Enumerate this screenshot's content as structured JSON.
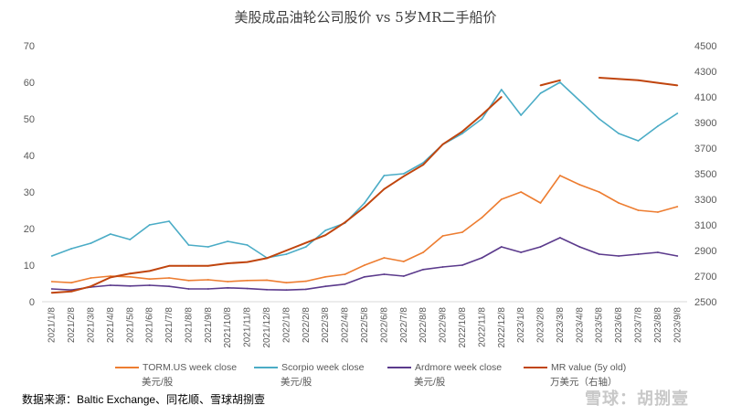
{
  "chart_data": {
    "type": "line",
    "title": "美股成品油轮公司股价  vs 5岁MR二手船价",
    "x": [
      "2021/1/8",
      "2021/2/8",
      "2021/3/8",
      "2021/4/8",
      "2021/5/8",
      "2021/6/8",
      "2021/7/8",
      "2021/8/8",
      "2021/9/8",
      "2021/10/8",
      "2021/11/8",
      "2021/12/8",
      "2022/1/8",
      "2022/2/8",
      "2022/3/8",
      "2022/4/8",
      "2022/5/8",
      "2022/6/8",
      "2022/7/8",
      "2022/8/8",
      "2022/9/8",
      "2022/10/8",
      "2022/11/8",
      "2022/12/8",
      "2023/1/8",
      "2023/2/8",
      "2023/3/8",
      "2023/4/8",
      "2023/5/8",
      "2023/6/8",
      "2023/7/8",
      "2023/8/8",
      "2023/9/8"
    ],
    "x_tick_labels": [
      "2021/1/8",
      "2021/2/8",
      "2021/3/8",
      "2021/4/8",
      "2021/5/8",
      "2021/6/8",
      "2021/7/8",
      "2021/8/8",
      "2021/9/8",
      "2021/10/8",
      "2021/11/8",
      "2021/12/8",
      "2022/1/8",
      "2022/2/8",
      "2022/3/8",
      "2022/4/8",
      "2022/5/8",
      "2022/6/8",
      "2022/7/8",
      "2022/8/8",
      "2022/9/8",
      "2022/10/8",
      "2022/11/8",
      "2022/12/8",
      "2023/1/8",
      "2023/2/8",
      "2023/3/8",
      "2023/4/8",
      "2023/5/8",
      "2023/6/8",
      "2023/7/8",
      "2023/8/8",
      "2023/9/8"
    ],
    "ylim_left": [
      0,
      70
    ],
    "y_left_ticks": [
      "0",
      "10",
      "20",
      "30",
      "40",
      "50",
      "60",
      "70"
    ],
    "ylim_right": [
      2500,
      4500
    ],
    "y_right_ticks": [
      "2500",
      "2700",
      "2900",
      "3100",
      "3300",
      "3500",
      "3700",
      "3900",
      "4100",
      "4300",
      "4500"
    ],
    "grid": false,
    "legend_position": "bottom",
    "series": [
      {
        "name": "TORM.US week close",
        "unit": "美元/股",
        "axis": "left",
        "color": "#ED7D31",
        "values": [
          5.5,
          5.2,
          6.5,
          7.0,
          6.8,
          6.2,
          6.5,
          5.8,
          6.0,
          5.5,
          5.8,
          5.9,
          5.2,
          5.6,
          6.8,
          7.5,
          10.0,
          12.0,
          11.0,
          13.5,
          18.0,
          19.0,
          23.0,
          28.0,
          30.0,
          27.0,
          34.5,
          32.0,
          30.0,
          27.0,
          25.0,
          24.5,
          26.0
        ]
      },
      {
        "name": "Scorpio week close",
        "unit": "美元/股",
        "axis": "left",
        "color": "#4BACC6",
        "values": [
          12.5,
          14.5,
          16.0,
          18.5,
          17.0,
          21.0,
          22.0,
          15.5,
          15.0,
          16.5,
          15.5,
          12.0,
          13.0,
          15.0,
          19.5,
          21.5,
          27.0,
          34.5,
          35.0,
          38.0,
          43.0,
          46.0,
          50.0,
          58.0,
          51.0,
          57.0,
          60.0,
          55.0,
          50.0,
          46.0,
          44.0,
          48.0,
          51.5
        ]
      },
      {
        "name": "Ardmore week close",
        "unit": "美元/股",
        "axis": "left",
        "color": "#5B3A8C",
        "values": [
          3.5,
          3.2,
          4.0,
          4.5,
          4.3,
          4.5,
          4.2,
          3.5,
          3.5,
          3.8,
          3.6,
          3.3,
          3.2,
          3.4,
          4.2,
          4.8,
          6.8,
          7.5,
          7.0,
          8.8,
          9.5,
          10.0,
          12.0,
          15.0,
          13.5,
          15.0,
          17.5,
          15.0,
          13.0,
          12.5,
          13.0,
          13.5,
          12.5
        ]
      },
      {
        "name": "MR value (5y old)",
        "unit": "万美元（右轴）",
        "axis": "right",
        "color": "#C0450E",
        "values": [
          2570,
          2580,
          2620,
          2690,
          2720,
          2740,
          2780,
          2780,
          2780,
          2800,
          2810,
          2840,
          2900,
          2960,
          3020,
          3120,
          3240,
          3380,
          3480,
          3570,
          3730,
          3830,
          3960,
          4100,
          null,
          4190,
          4230,
          null,
          4250,
          4240,
          4230,
          4210,
          4190
        ]
      }
    ]
  },
  "footer": {
    "source": "数据来源：Baltic Exchange、同花顺、雪球胡捌壹",
    "watermark": "雪球：胡捌壹"
  }
}
